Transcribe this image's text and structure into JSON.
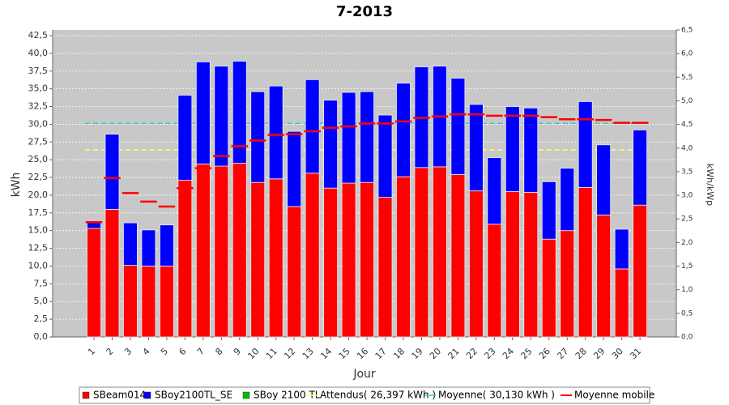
{
  "chart_data": {
    "type": "bar",
    "title": "7-2013",
    "x_label": "Jour",
    "y_label": "kWh",
    "y2_label": "kWh/kWp",
    "categories": [
      "1",
      "2",
      "3",
      "4",
      "5",
      "6",
      "7",
      "8",
      "9",
      "10",
      "11",
      "12",
      "13",
      "14",
      "15",
      "16",
      "17",
      "18",
      "19",
      "20",
      "21",
      "22",
      "23",
      "24",
      "25",
      "26",
      "27",
      "28",
      "29",
      "30",
      "31"
    ],
    "stacked": true,
    "series": [
      {
        "name": "SBeam014",
        "color": "#ff0000",
        "values": [
          15.3,
          18.0,
          10.1,
          10.0,
          10.0,
          22.1,
          24.4,
          24.1,
          24.5,
          21.8,
          22.3,
          18.4,
          23.1,
          21.0,
          21.7,
          21.8,
          19.7,
          22.6,
          23.9,
          24.0,
          22.9,
          20.6,
          15.9,
          20.5,
          20.4,
          13.8,
          15.0,
          21.1,
          17.2,
          9.6,
          18.6
        ]
      },
      {
        "name": "SBoy2100TL_SE",
        "color": "#0000ff",
        "values": [
          0.9,
          10.6,
          6.0,
          5.1,
          5.8,
          12.0,
          14.4,
          14.1,
          14.4,
          12.8,
          13.1,
          10.6,
          13.2,
          12.4,
          12.8,
          12.8,
          11.6,
          13.2,
          14.2,
          14.2,
          13.6,
          12.2,
          9.4,
          12.0,
          11.9,
          8.1,
          8.8,
          12.1,
          9.9,
          5.6,
          10.6
        ]
      },
      {
        "name": "SBoy 2100 TL",
        "color": "#00c000",
        "values": [
          0,
          0,
          0,
          0,
          0,
          0,
          0,
          0,
          0,
          0,
          0,
          0,
          0,
          0,
          0,
          0,
          0,
          0,
          0,
          0,
          0,
          0,
          0,
          0,
          0,
          0,
          0,
          0,
          0,
          0,
          0
        ]
      }
    ],
    "reference_lines": [
      {
        "name": "Attendus( 26,397 kWh )",
        "value": 26.397,
        "color": "#ffff66"
      },
      {
        "name": "Moyenne( 30,130 kWh )",
        "value": 30.13,
        "color": "#33cccc"
      }
    ],
    "moving_average": {
      "name": "Moyenne mobile",
      "color": "#ff0000",
      "values": [
        16.2,
        22.4,
        20.3,
        19.1,
        18.4,
        21.0,
        23.8,
        25.5,
        26.9,
        27.7,
        28.5,
        28.6,
        29.0,
        29.5,
        29.7,
        30.1,
        30.1,
        30.4,
        30.9,
        31.1,
        31.4,
        31.4,
        31.2,
        31.2,
        31.2,
        31.0,
        30.7,
        30.7,
        30.6,
        30.2,
        30.2
      ]
    },
    "ylim": [
      0,
      43.3
    ],
    "yticks": [
      {
        "value": 0,
        "label": "0,0"
      },
      {
        "value": 2.5,
        "label": "2,5"
      },
      {
        "value": 5,
        "label": "5,0"
      },
      {
        "value": 7.5,
        "label": "7,5"
      },
      {
        "value": 10,
        "label": "10,0"
      },
      {
        "value": 12.5,
        "label": "12,5"
      },
      {
        "value": 15,
        "label": "15,0"
      },
      {
        "value": 17.5,
        "label": "17,5"
      },
      {
        "value": 20,
        "label": "20,0"
      },
      {
        "value": 22.5,
        "label": "22,5"
      },
      {
        "value": 25,
        "label": "25,0"
      },
      {
        "value": 27.5,
        "label": "27,5"
      },
      {
        "value": 30,
        "label": "30,0"
      },
      {
        "value": 32.5,
        "label": "32,5"
      },
      {
        "value": 35,
        "label": "35,0"
      },
      {
        "value": 37.5,
        "label": "37,5"
      },
      {
        "value": 40,
        "label": "40,0"
      },
      {
        "value": 42.5,
        "label": "42,5"
      }
    ],
    "y2lim": [
      0,
      6.5
    ],
    "y2ticks": [
      {
        "value": 0,
        "label": "0,0"
      },
      {
        "value": 0.5,
        "label": "0,5"
      },
      {
        "value": 1,
        "label": "1,0"
      },
      {
        "value": 1.5,
        "label": "1,5"
      },
      {
        "value": 2,
        "label": "2,0"
      },
      {
        "value": 2.5,
        "label": "2,5"
      },
      {
        "value": 3,
        "label": "3,0"
      },
      {
        "value": 3.5,
        "label": "3,5"
      },
      {
        "value": 4,
        "label": "4,0"
      },
      {
        "value": 4.5,
        "label": "4,5"
      },
      {
        "value": 5,
        "label": "5,0"
      },
      {
        "value": 5.5,
        "label": "5,5"
      },
      {
        "value": 6,
        "label": "6,0"
      },
      {
        "value": 6.5,
        "label": "6,5"
      }
    ],
    "grid": true
  }
}
